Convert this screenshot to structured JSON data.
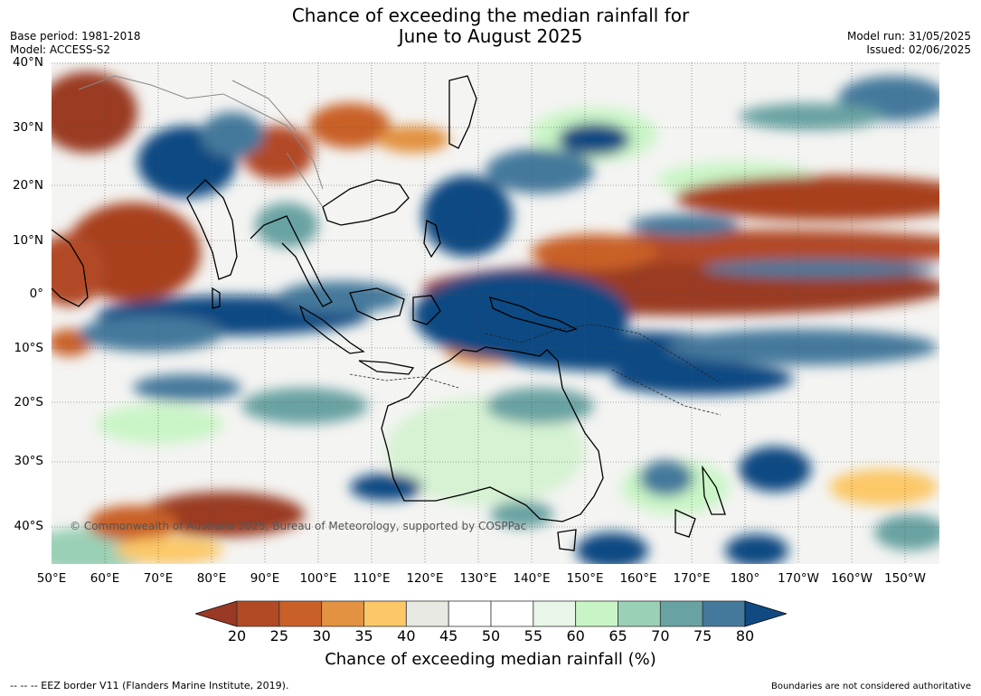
{
  "title_line1": "Chance of exceeding the median rainfall for",
  "title_line2": "June to August 2025",
  "base_period": "Base period: 1981-2018",
  "model": "Model: ACCESS-S2",
  "model_run": "Model run: 31/05/2025",
  "issued": "Issued: 02/06/2025",
  "copyright": "© Commonwealth of Australia 2025, Bureau of Meteorology, supported by COSPPac",
  "lat_labels": [
    "40°N",
    "30°N",
    "20°N",
    "10°N",
    "0°",
    "10°S",
    "20°S",
    "30°S",
    "40°S"
  ],
  "lon_labels": [
    "50°E",
    "60°E",
    "70°E",
    "80°E",
    "90°E",
    "100°E",
    "110°E",
    "120°E",
    "130°E",
    "140°E",
    "150°E",
    "160°E",
    "170°E",
    "180°",
    "170°W",
    "160°W",
    "150°W"
  ],
  "colorbar": {
    "ticks": [
      "20",
      "25",
      "30",
      "35",
      "40",
      "45",
      "50",
      "55",
      "60",
      "65",
      "70",
      "75",
      "80"
    ],
    "colors": [
      "#9a3a24",
      "#b24a25",
      "#c96028",
      "#e29240",
      "#fcc867",
      "#e9e9e4",
      "#ffffff",
      "#ffffff",
      "#e8f5e8",
      "#c9f5c6",
      "#9ad0b6",
      "#69a2a2",
      "#45799c",
      "#114a82"
    ],
    "title": "Chance of exceeding median rainfall (%)"
  },
  "footer_left": "--  --  -- EEZ border V11 (Flanders Marine Institute, 2019).",
  "footer_right": "Boundaries are not considered authoritative"
}
